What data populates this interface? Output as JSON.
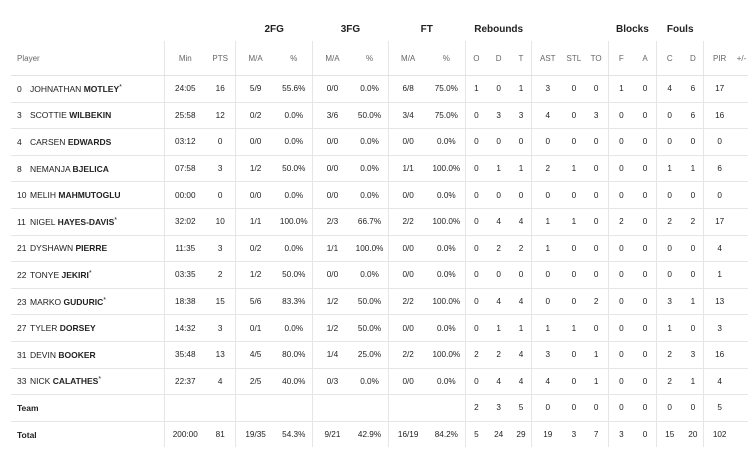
{
  "groups": {
    "fg2": "2FG",
    "fg3": "3FG",
    "ft": "FT",
    "rebounds": "Rebounds",
    "blocks": "Blocks",
    "fouls": "Fouls"
  },
  "columns": {
    "player": "Player",
    "min": "Min",
    "pts": "PTS",
    "fg2_ma": "M/A",
    "fg2_pct": "%",
    "fg3_ma": "M/A",
    "fg3_pct": "%",
    "ft_ma": "M/A",
    "ft_pct": "%",
    "reb_o": "O",
    "reb_d": "D",
    "reb_t": "T",
    "ast": "AST",
    "stl": "STL",
    "to": "TO",
    "blk_f": "F",
    "blk_a": "A",
    "foul_c": "C",
    "foul_d": "D",
    "pir": "PIR",
    "pm": "+/-"
  },
  "players": [
    {
      "num": "0",
      "first": "JOHNATHAN",
      "last": "MOTLEY",
      "star": "*",
      "min": "24:05",
      "pts": "16",
      "fg2": "5/9",
      "fg2p": "55.6%",
      "fg3": "0/0",
      "fg3p": "0.0%",
      "ft": "6/8",
      "ftp": "75.0%",
      "o": "1",
      "d": "0",
      "t": "1",
      "ast": "3",
      "stl": "0",
      "to": "0",
      "bf": "1",
      "ba": "0",
      "fc": "4",
      "fd": "6",
      "pir": "17",
      "pm": ""
    },
    {
      "num": "3",
      "first": "SCOTTIE",
      "last": "WILBEKIN",
      "star": "",
      "min": "25:58",
      "pts": "12",
      "fg2": "0/2",
      "fg2p": "0.0%",
      "fg3": "3/6",
      "fg3p": "50.0%",
      "ft": "3/4",
      "ftp": "75.0%",
      "o": "0",
      "d": "3",
      "t": "3",
      "ast": "4",
      "stl": "0",
      "to": "3",
      "bf": "0",
      "ba": "0",
      "fc": "0",
      "fd": "6",
      "pir": "16",
      "pm": ""
    },
    {
      "num": "4",
      "first": "CARSEN",
      "last": "EDWARDS",
      "star": "",
      "min": "03:12",
      "pts": "0",
      "fg2": "0/0",
      "fg2p": "0.0%",
      "fg3": "0/0",
      "fg3p": "0.0%",
      "ft": "0/0",
      "ftp": "0.0%",
      "o": "0",
      "d": "0",
      "t": "0",
      "ast": "0",
      "stl": "0",
      "to": "0",
      "bf": "0",
      "ba": "0",
      "fc": "0",
      "fd": "0",
      "pir": "0",
      "pm": ""
    },
    {
      "num": "8",
      "first": "NEMANJA",
      "last": "BJELICA",
      "star": "",
      "min": "07:58",
      "pts": "3",
      "fg2": "1/2",
      "fg2p": "50.0%",
      "fg3": "0/0",
      "fg3p": "0.0%",
      "ft": "1/1",
      "ftp": "100.0%",
      "o": "0",
      "d": "1",
      "t": "1",
      "ast": "2",
      "stl": "1",
      "to": "0",
      "bf": "0",
      "ba": "0",
      "fc": "1",
      "fd": "1",
      "pir": "6",
      "pm": ""
    },
    {
      "num": "10",
      "first": "MELIH",
      "last": "MAHMUTOGLU",
      "star": "",
      "min": "00:00",
      "pts": "0",
      "fg2": "0/0",
      "fg2p": "0.0%",
      "fg3": "0/0",
      "fg3p": "0.0%",
      "ft": "0/0",
      "ftp": "0.0%",
      "o": "0",
      "d": "0",
      "t": "0",
      "ast": "0",
      "stl": "0",
      "to": "0",
      "bf": "0",
      "ba": "0",
      "fc": "0",
      "fd": "0",
      "pir": "0",
      "pm": ""
    },
    {
      "num": "11",
      "first": "NIGEL",
      "last": "HAYES-DAVIS",
      "star": "*",
      "min": "32:02",
      "pts": "10",
      "fg2": "1/1",
      "fg2p": "100.0%",
      "fg3": "2/3",
      "fg3p": "66.7%",
      "ft": "2/2",
      "ftp": "100.0%",
      "o": "0",
      "d": "4",
      "t": "4",
      "ast": "1",
      "stl": "1",
      "to": "0",
      "bf": "2",
      "ba": "0",
      "fc": "2",
      "fd": "2",
      "pir": "17",
      "pm": ""
    },
    {
      "num": "21",
      "first": "DYSHAWN",
      "last": "PIERRE",
      "star": "",
      "min": "11:35",
      "pts": "3",
      "fg2": "0/2",
      "fg2p": "0.0%",
      "fg3": "1/1",
      "fg3p": "100.0%",
      "ft": "0/0",
      "ftp": "0.0%",
      "o": "0",
      "d": "2",
      "t": "2",
      "ast": "1",
      "stl": "0",
      "to": "0",
      "bf": "0",
      "ba": "0",
      "fc": "0",
      "fd": "0",
      "pir": "4",
      "pm": ""
    },
    {
      "num": "22",
      "first": "TONYE",
      "last": "JEKIRI",
      "star": "*",
      "min": "03:35",
      "pts": "2",
      "fg2": "1/2",
      "fg2p": "50.0%",
      "fg3": "0/0",
      "fg3p": "0.0%",
      "ft": "0/0",
      "ftp": "0.0%",
      "o": "0",
      "d": "0",
      "t": "0",
      "ast": "0",
      "stl": "0",
      "to": "0",
      "bf": "0",
      "ba": "0",
      "fc": "0",
      "fd": "0",
      "pir": "1",
      "pm": ""
    },
    {
      "num": "23",
      "first": "MARKO",
      "last": "GUDURIC",
      "star": "*",
      "min": "18:38",
      "pts": "15",
      "fg2": "5/6",
      "fg2p": "83.3%",
      "fg3": "1/2",
      "fg3p": "50.0%",
      "ft": "2/2",
      "ftp": "100.0%",
      "o": "0",
      "d": "4",
      "t": "4",
      "ast": "0",
      "stl": "0",
      "to": "2",
      "bf": "0",
      "ba": "0",
      "fc": "3",
      "fd": "1",
      "pir": "13",
      "pm": ""
    },
    {
      "num": "27",
      "first": "TYLER",
      "last": "DORSEY",
      "star": "",
      "min": "14:32",
      "pts": "3",
      "fg2": "0/1",
      "fg2p": "0.0%",
      "fg3": "1/2",
      "fg3p": "50.0%",
      "ft": "0/0",
      "ftp": "0.0%",
      "o": "0",
      "d": "1",
      "t": "1",
      "ast": "1",
      "stl": "1",
      "to": "0",
      "bf": "0",
      "ba": "0",
      "fc": "1",
      "fd": "0",
      "pir": "3",
      "pm": ""
    },
    {
      "num": "31",
      "first": "DEVIN",
      "last": "BOOKER",
      "star": "",
      "min": "35:48",
      "pts": "13",
      "fg2": "4/5",
      "fg2p": "80.0%",
      "fg3": "1/4",
      "fg3p": "25.0%",
      "ft": "2/2",
      "ftp": "100.0%",
      "o": "2",
      "d": "2",
      "t": "4",
      "ast": "3",
      "stl": "0",
      "to": "1",
      "bf": "0",
      "ba": "0",
      "fc": "2",
      "fd": "3",
      "pir": "16",
      "pm": ""
    },
    {
      "num": "33",
      "first": "NICK",
      "last": "CALATHES",
      "star": "*",
      "min": "22:37",
      "pts": "4",
      "fg2": "2/5",
      "fg2p": "40.0%",
      "fg3": "0/3",
      "fg3p": "0.0%",
      "ft": "0/0",
      "ftp": "0.0%",
      "o": "0",
      "d": "4",
      "t": "4",
      "ast": "4",
      "stl": "0",
      "to": "1",
      "bf": "0",
      "ba": "0",
      "fc": "2",
      "fd": "1",
      "pir": "4",
      "pm": ""
    }
  ],
  "team": {
    "label": "Team",
    "min": "",
    "pts": "",
    "fg2": "",
    "fg2p": "",
    "fg3": "",
    "fg3p": "",
    "ft": "",
    "ftp": "",
    "o": "2",
    "d": "3",
    "t": "5",
    "ast": "0",
    "stl": "0",
    "to": "0",
    "bf": "0",
    "ba": "0",
    "fc": "0",
    "fd": "0",
    "pir": "5",
    "pm": ""
  },
  "total": {
    "label": "Total",
    "min": "200:00",
    "pts": "81",
    "fg2": "19/35",
    "fg2p": "54.3%",
    "fg3": "9/21",
    "fg3p": "42.9%",
    "ft": "16/19",
    "ftp": "84.2%",
    "o": "5",
    "d": "24",
    "t": "29",
    "ast": "19",
    "stl": "3",
    "to": "7",
    "bf": "3",
    "ba": "0",
    "fc": "15",
    "fd": "20",
    "pir": "102",
    "pm": ""
  }
}
